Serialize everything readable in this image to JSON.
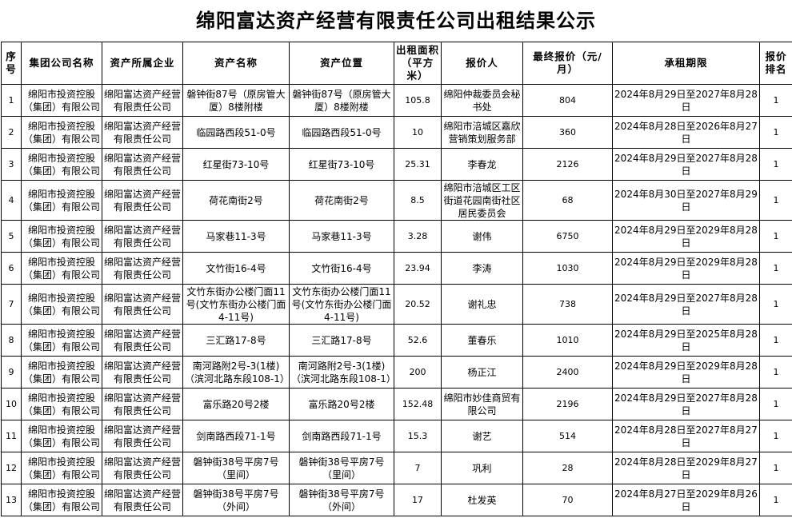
{
  "title": "绵阳富达资产经营有限责任公司出租结果公示",
  "headers": [
    "序号",
    "集团公司名称",
    "资产所属企业",
    "资产名称",
    "资产位置",
    "出租面积（平方米）",
    "报价人",
    "最终报价（元/月）",
    "承租期限",
    "报价排名"
  ],
  "rows": [
    [
      "1",
      "绵阳市投资控股（集团）有限公司",
      "绵阳富达资产经营有限责任公司",
      "磐钟街87号（原房管大厦）8楼附楼",
      "磐钟街87号（原房管大厦）8楼附楼",
      "105.8",
      "绵阳仲裁委员会秘书处",
      "804",
      "2024年8月29日至2027年8月28日",
      "1"
    ],
    [
      "2",
      "绵阳市投资控股（集团）有限公司",
      "绵阳富达资产经营有限责任公司",
      "临园路西段51-0号",
      "临园路西段51-0号",
      "10",
      "绵阳市涪城区嘉欣营销策划服务部",
      "360",
      "2024年8月28日至2026年8月27日",
      "1"
    ],
    [
      "3",
      "绵阳市投资控股（集团）有限公司",
      "绵阳富达资产经营有限责任公司",
      "红星街73-10号",
      "红星街73-10号",
      "25.31",
      "李春龙",
      "2126",
      "2024年8月29日至2027年8月28日",
      "1"
    ],
    [
      "4",
      "绵阳市投资控股（集团）有限公司",
      "绵阳富达资产经营有限责任公司",
      "荷花南街2号",
      "荷花南街2号",
      "8.5",
      "绵阳市涪城区工区街道花园南街社区居民委员会",
      "68",
      "2024年8月30日至2027年8月29日",
      "1"
    ],
    [
      "5",
      "绵阳市投资控股（集团）有限公司",
      "绵阳富达资产经营有限责任公司",
      "马家巷11-3号",
      "马家巷11-3号",
      "3.28",
      "谢伟",
      "6750",
      "2024年8月29日至2029年8月28日",
      "1"
    ],
    [
      "6",
      "绵阳市投资控股（集团）有限公司",
      "绵阳富达资产经营有限责任公司",
      "文竹街16-4号",
      "文竹街16-4号",
      "23.94",
      "李涛",
      "1030",
      "2024年8月29日至2029年8月28日",
      "1"
    ],
    [
      "7",
      "绵阳市投资控股（集团）有限公司",
      "绵阳富达资产经营有限责任公司",
      "文竹东街办公楼门面11号(文竹东街办公楼门面4-11号)",
      "文竹东街办公楼门面11号(文竹东街办公楼门面4-11号)",
      "20.52",
      "谢礼忠",
      "738",
      "2024年8月29日至2027年8月28日",
      "1"
    ],
    [
      "8",
      "绵阳市投资控股（集团）有限公司",
      "绵阳富达资产经营有限责任公司",
      "三汇路17-8号",
      "三汇路17-8号",
      "52.6",
      "董春乐",
      "1010",
      "2024年8月29日至2025年8月28日",
      "1"
    ],
    [
      "9",
      "绵阳市投资控股（集团）有限公司",
      "绵阳富达资产经营有限责任公司",
      "南河路附2号-3(1楼)（滨河北路东段108-1）",
      "南河路附2号-3(1楼)（滨河北路东段108-1）",
      "200",
      "杨正江",
      "2400",
      "2024年8月29日至2029年8月28日",
      "1"
    ],
    [
      "10",
      "绵阳市投资控股（集团）有限公司",
      "绵阳富达资产经营有限责任公司",
      "富乐路20号2楼",
      "富乐路20号2楼",
      "152.48",
      "绵阳市妙佳商贸有限公司",
      "2196",
      "2024年8月29日至2027年8月28日",
      "1"
    ],
    [
      "11",
      "绵阳市投资控股（集团）有限公司",
      "绵阳富达资产经营有限责任公司",
      "剑南路西段71-1号",
      "剑南路西段71-1号",
      "15.3",
      "谢艺",
      "514",
      "2024年8月28日至2027年8月27日",
      "1"
    ],
    [
      "12",
      "绵阳市投资控股（集团）有限公司",
      "绵阳富达资产经营有限责任公司",
      "磐钟街38号平房7号（里间）",
      "磐钟街38号平房7号（里间）",
      "7",
      "巩利",
      "28",
      "2024年8月28日至2029年8月27日",
      "1"
    ],
    [
      "13",
      "绵阳市投资控股（集团）有限公司",
      "绵阳富达资产经营有限责任公司",
      "磐钟街38号平房7号（外间）",
      "磐钟街38号平房7号（外间）",
      "17",
      "杜发英",
      "70",
      "2024年8月27日至2029年8月26日",
      "1"
    ]
  ]
}
